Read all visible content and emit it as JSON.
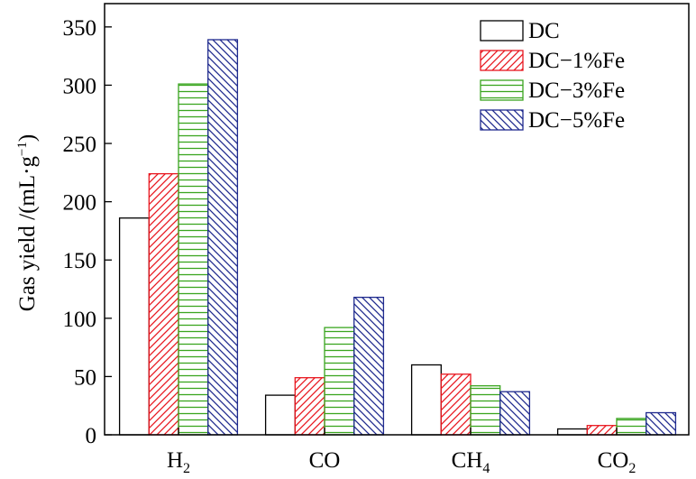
{
  "chart_data": {
    "type": "bar",
    "categories": [
      {
        "base": "H",
        "sub": "2"
      },
      {
        "base": "CO",
        "sub": ""
      },
      {
        "base": "CH",
        "sub": "4"
      },
      {
        "base": "CO",
        "sub": "2"
      }
    ],
    "series": [
      {
        "name": "DC",
        "color": "#000000",
        "pattern": "none",
        "values": [
          186,
          34,
          60,
          5
        ]
      },
      {
        "name": "DC−1%Fe",
        "color": "#e8171f",
        "pattern": "diagonal",
        "values": [
          224,
          49,
          52,
          8
        ]
      },
      {
        "name": "DC−3%Fe",
        "color": "#3aa51f",
        "pattern": "horizontal",
        "values": [
          301,
          92,
          42,
          14
        ]
      },
      {
        "name": "DC−5%Fe",
        "color": "#1f2a8e",
        "pattern": "backdiagonal",
        "values": [
          339,
          118,
          37,
          19
        ]
      }
    ],
    "ylabel": {
      "main": "Gas yield /(mL·g",
      "sup": "−1",
      "end": ")"
    },
    "ylim": [
      0,
      370
    ],
    "yticks": [
      0,
      50,
      100,
      150,
      200,
      250,
      300,
      350
    ],
    "legend_position": "top-right",
    "grid": false
  }
}
